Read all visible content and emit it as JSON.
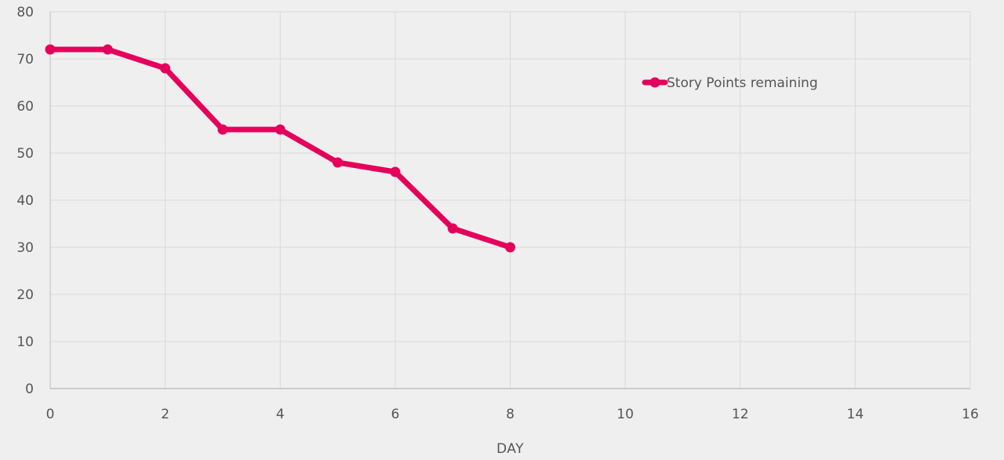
{
  "chart_data": {
    "type": "line",
    "title": "",
    "xlabel": "DAY",
    "ylabel": "",
    "xlim": [
      0,
      16
    ],
    "ylim": [
      0,
      80
    ],
    "x_ticks": [
      "0",
      "2",
      "4",
      "6",
      "8",
      "10",
      "12",
      "14",
      "16"
    ],
    "y_ticks": [
      "0",
      "10",
      "20",
      "30",
      "40",
      "50",
      "60",
      "70",
      "80"
    ],
    "grid": true,
    "legend_position": "top-right",
    "series": [
      {
        "name": "Story Points remaining",
        "color": "#e4005b",
        "x": [
          0,
          1,
          2,
          3,
          4,
          5,
          6,
          7,
          8
        ],
        "y": [
          72,
          72,
          68,
          55,
          55,
          48,
          46,
          34,
          30
        ]
      }
    ]
  },
  "colors": {
    "background": "#efefef",
    "grid": "#d9d9d9",
    "axis": "#bfbfbf",
    "text": "#555555"
  }
}
